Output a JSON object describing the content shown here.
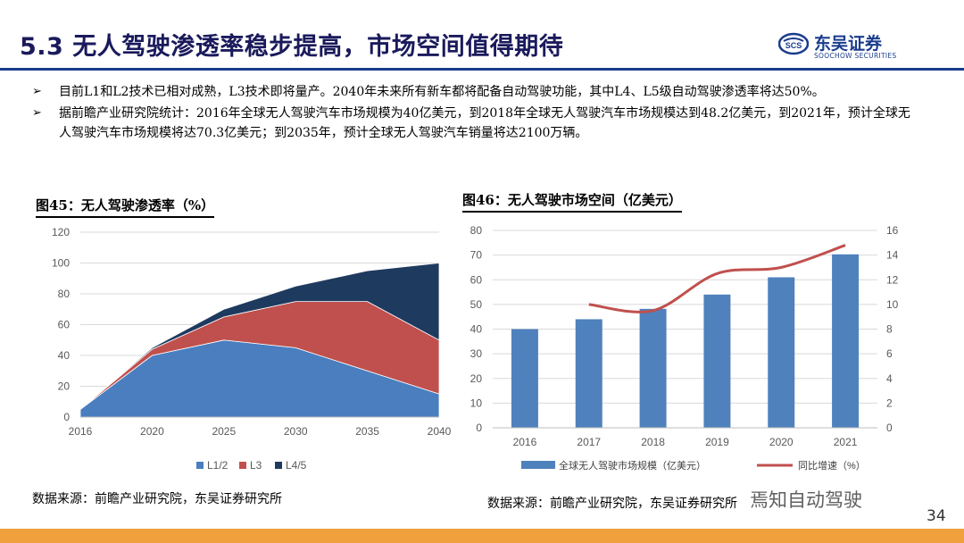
{
  "header": {
    "title": "5.3 无人驾驶渗透率稳步提高，市场空间值得期待",
    "logo_cn": "东吴证券",
    "logo_en": "SOOCHOW SECURITIES",
    "logo_mark": "SCS"
  },
  "bullets": [
    {
      "icon": "arrow-bullet-icon",
      "symbol": "➢",
      "text": "目前L1和L2技术已相对成熟，L3技术即将量产。2040年未来所有新车都将配备自动驾驶功能，其中L4、L5级自动驾驶渗透率将达50%。"
    },
    {
      "icon": "arrow-bullet-icon",
      "symbol": "➢",
      "text": "据前瞻产业研究院统计：2016年全球无人驾驶汽车市场规模为40亿美元，到2018年全球无人驾驶汽车市场规模达到48.2亿美元，到2021年，预计全球无人驾驶汽车市场规模将达70.3亿美元；到2035年，预计全球无人驾驶汽车销量将达2100万辆。"
    }
  ],
  "figures": {
    "left_title": "图45：无人驾驶渗透率（%）",
    "right_title": "图46：无人驾驶市场空间（亿美元）"
  },
  "sources": {
    "left": "数据来源：前瞻产业研究院，东吴证券研究所",
    "right": "数据来源：前瞻产业研究院，东吴证券研究所"
  },
  "watermark": "焉知自动驾驶",
  "page_number": "34",
  "colors": {
    "title": "#1a1a5c",
    "rule": "#1a3c8c",
    "l12": "#4a7ebf",
    "l3": "#c0504d",
    "l45": "#1f3a5f",
    "bar": "#4f81bd",
    "growth_line": "#c0504d",
    "footer": "#f0a03c"
  },
  "chart_data": [
    {
      "type": "area",
      "stacked": true,
      "x": [
        "2016",
        "2020",
        "2025",
        "2030",
        "2035",
        "2040"
      ],
      "series": [
        {
          "name": "L1/2",
          "values": [
            5,
            40,
            50,
            45,
            30,
            15
          ]
        },
        {
          "name": "L3",
          "values": [
            0,
            4,
            15,
            30,
            45,
            35
          ]
        },
        {
          "name": "L4/5",
          "values": [
            0,
            1,
            5,
            10,
            20,
            50
          ]
        }
      ],
      "ylim": [
        0,
        120
      ],
      "yticks": [
        0,
        20,
        40,
        60,
        80,
        100,
        120
      ],
      "grid": true,
      "legend": "bottom"
    },
    {
      "type": "bar",
      "categories": [
        "2016",
        "2017",
        "2018",
        "2019",
        "2020",
        "2021"
      ],
      "series": [
        {
          "name": "全球无人驾驶市场规模（亿美元）",
          "type": "bar",
          "axis": "left",
          "values": [
            40,
            44,
            48.2,
            54,
            61,
            70.3
          ]
        },
        {
          "name": "同比增速（%）",
          "type": "line",
          "axis": "right",
          "values": [
            null,
            10,
            9.5,
            12.5,
            13,
            14.8
          ]
        }
      ],
      "ylim": [
        0,
        80
      ],
      "yticks": [
        0,
        10,
        20,
        30,
        40,
        50,
        60,
        70,
        80
      ],
      "y2lim": [
        0,
        16
      ],
      "y2ticks": [
        0,
        2,
        4,
        6,
        8,
        10,
        12,
        14,
        16
      ],
      "grid": true,
      "legend": "bottom"
    }
  ]
}
